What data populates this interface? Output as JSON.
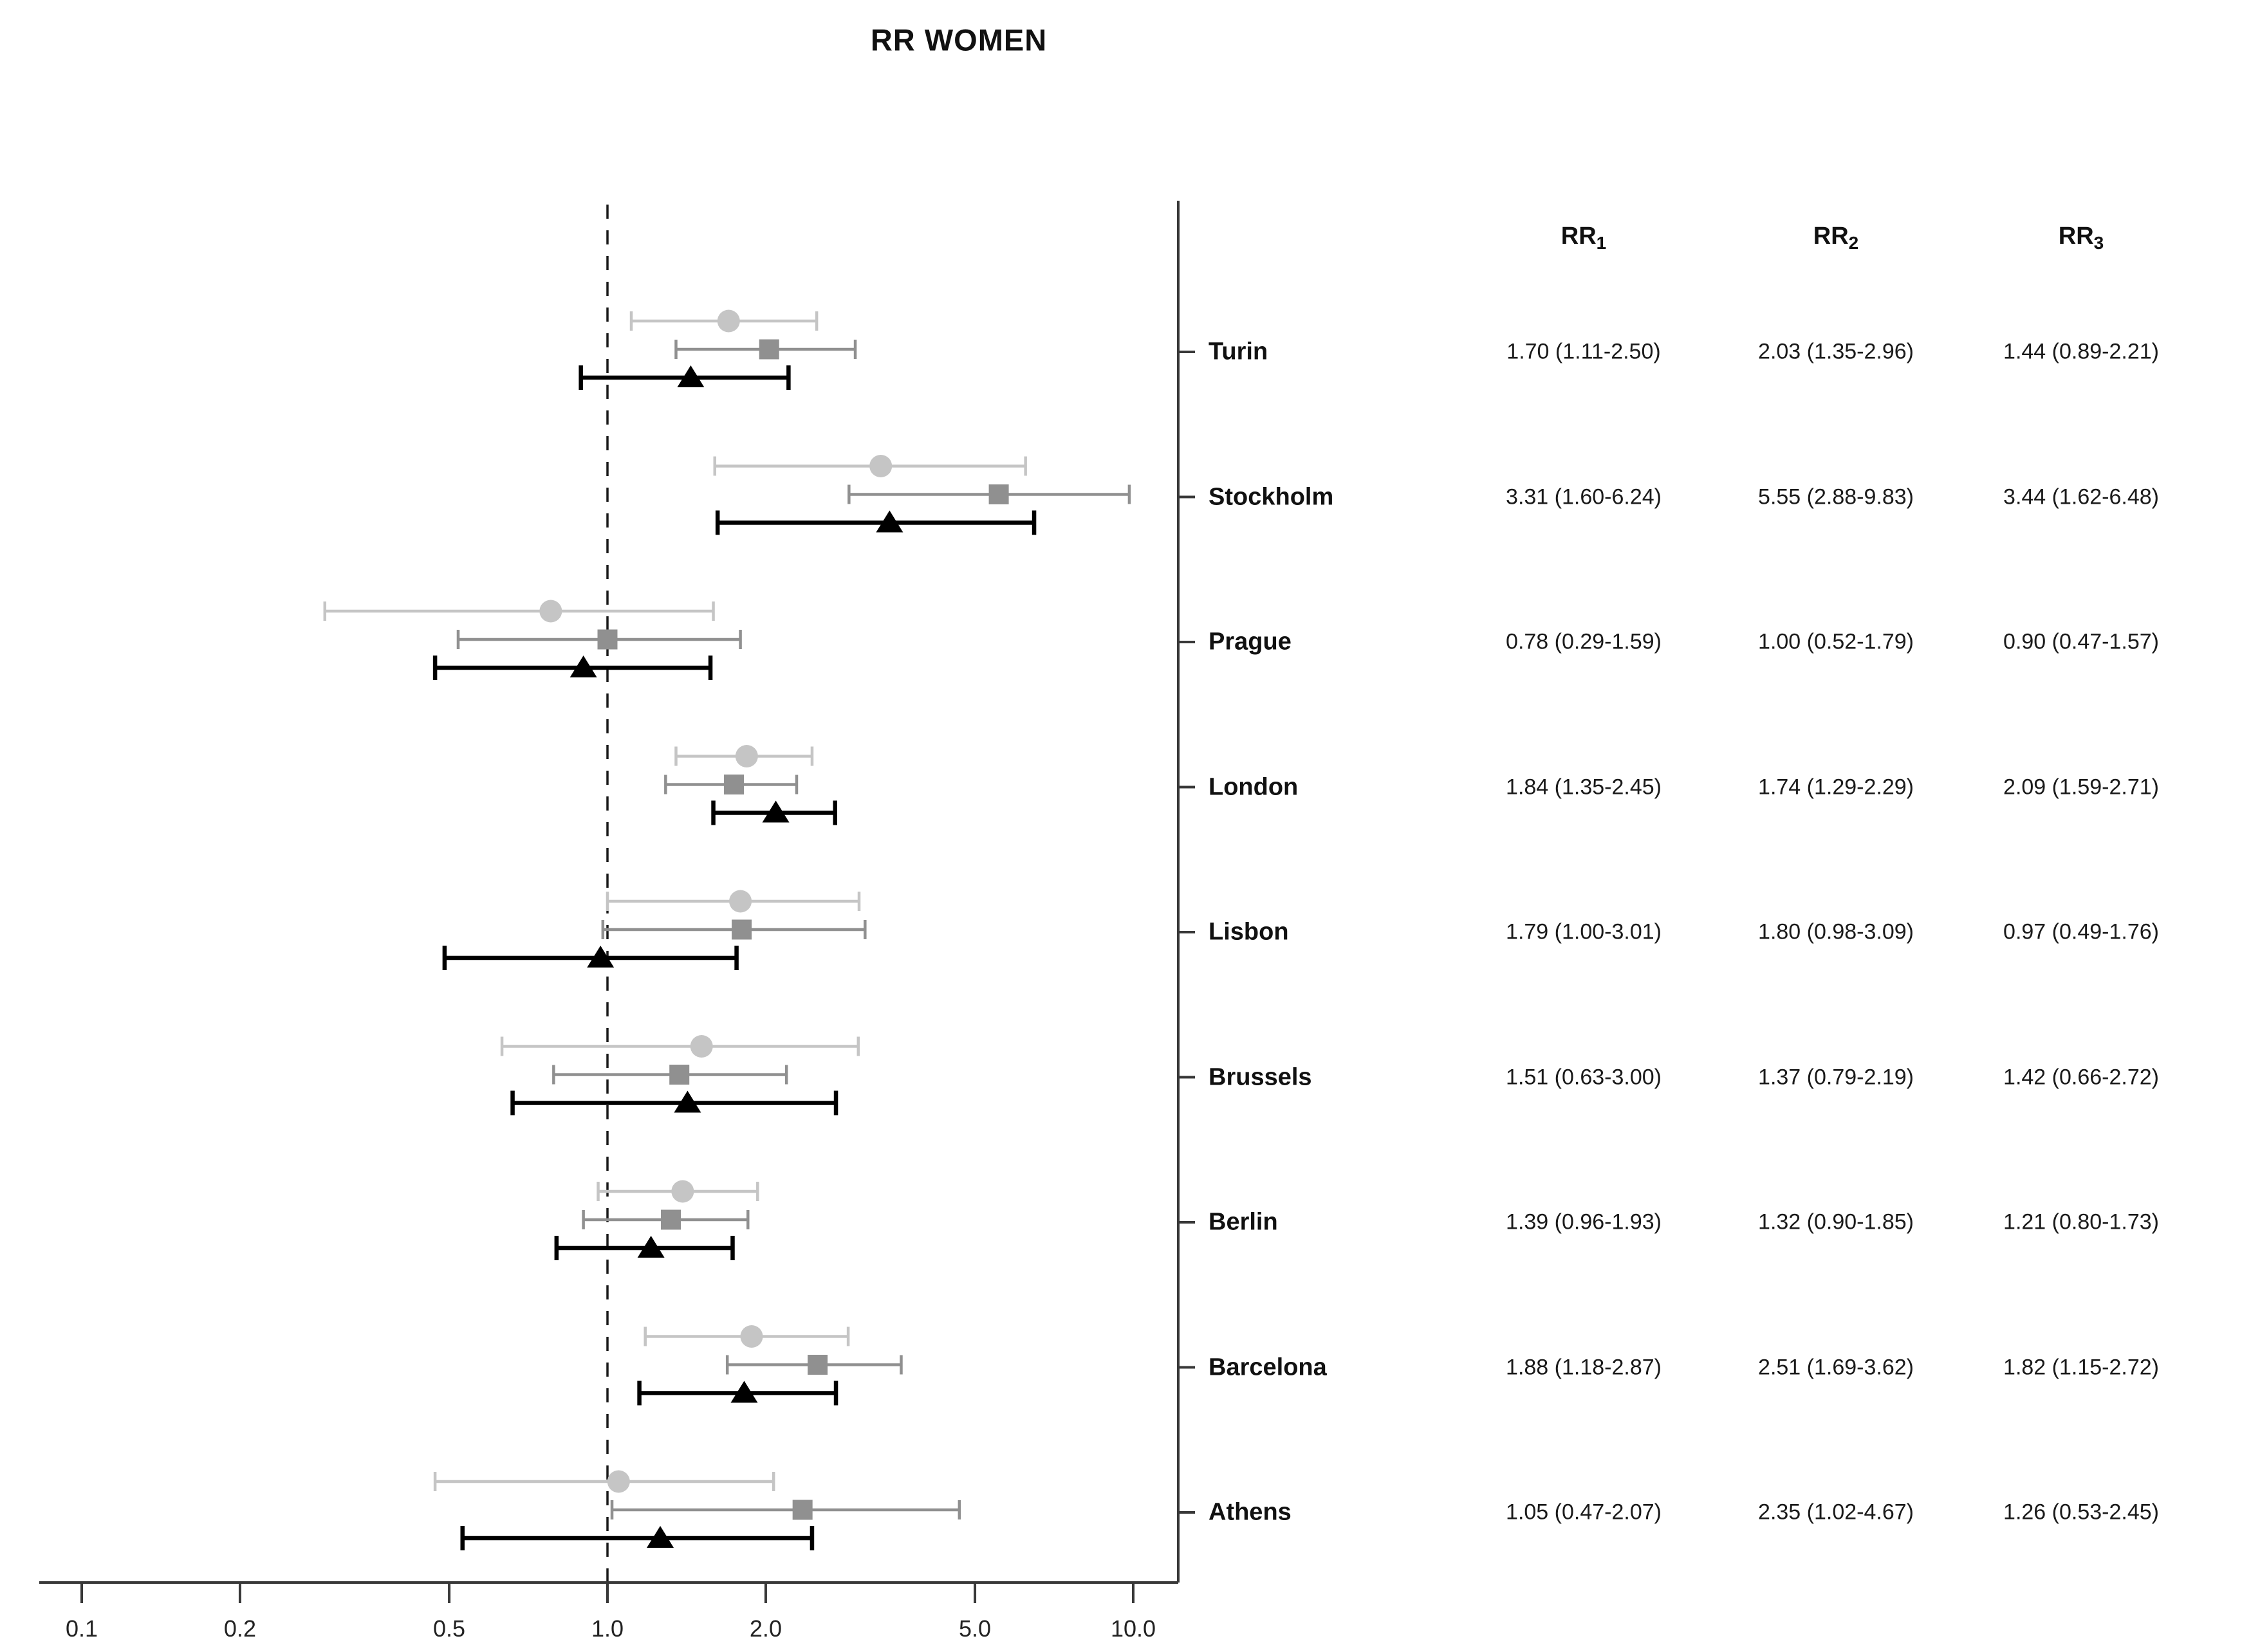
{
  "chart_data": {
    "type": "forest",
    "title": "RR WOMEN",
    "xscale": "log",
    "xticks": [
      "0.1",
      "0.2",
      "0.5",
      "1.0",
      "2.0",
      "5.0",
      "10.0"
    ],
    "xtick_values": [
      0.1,
      0.2,
      0.5,
      1.0,
      2.0,
      5.0,
      10.0
    ],
    "xlim": [
      0.083,
      12.2
    ],
    "reference_line": 1.0,
    "grid": false,
    "legend": "none",
    "frame_color": "#383838",
    "series": [
      {
        "id": "RR1",
        "header": {
          "base": "RR",
          "sub": "1"
        },
        "marker": "circle",
        "color": "#c5c5c5"
      },
      {
        "id": "RR2",
        "header": {
          "base": "RR",
          "sub": "2"
        },
        "marker": "square",
        "color": "#909090"
      },
      {
        "id": "RR3",
        "header": {
          "base": "RR",
          "sub": "3"
        },
        "marker": "triangle",
        "color": "#000000"
      }
    ],
    "rows": [
      {
        "city": "Turin",
        "estimates": [
          {
            "est": 1.7,
            "lo": 1.11,
            "hi": 2.5,
            "text": "1.70 (1.11-2.50)"
          },
          {
            "est": 2.03,
            "lo": 1.35,
            "hi": 2.96,
            "text": "2.03 (1.35-2.96)"
          },
          {
            "est": 1.44,
            "lo": 0.89,
            "hi": 2.21,
            "text": "1.44 (0.89-2.21)"
          }
        ]
      },
      {
        "city": "Stockholm",
        "estimates": [
          {
            "est": 3.31,
            "lo": 1.6,
            "hi": 6.24,
            "text": "3.31 (1.60-6.24)"
          },
          {
            "est": 5.55,
            "lo": 2.88,
            "hi": 9.83,
            "text": "5.55 (2.88-9.83)"
          },
          {
            "est": 3.44,
            "lo": 1.62,
            "hi": 6.48,
            "text": "3.44 (1.62-6.48)"
          }
        ]
      },
      {
        "city": "Prague",
        "estimates": [
          {
            "est": 0.78,
            "lo": 0.29,
            "hi": 1.59,
            "text": "0.78 (0.29-1.59)"
          },
          {
            "est": 1.0,
            "lo": 0.52,
            "hi": 1.79,
            "text": "1.00 (0.52-1.79)"
          },
          {
            "est": 0.9,
            "lo": 0.47,
            "hi": 1.57,
            "text": "0.90 (0.47-1.57)"
          }
        ]
      },
      {
        "city": "London",
        "estimates": [
          {
            "est": 1.84,
            "lo": 1.35,
            "hi": 2.45,
            "text": "1.84 (1.35-2.45)"
          },
          {
            "est": 1.74,
            "lo": 1.29,
            "hi": 2.29,
            "text": "1.74 (1.29-2.29)"
          },
          {
            "est": 2.09,
            "lo": 1.59,
            "hi": 2.71,
            "text": "2.09 (1.59-2.71)"
          }
        ]
      },
      {
        "city": "Lisbon",
        "estimates": [
          {
            "est": 1.79,
            "lo": 1.0,
            "hi": 3.01,
            "text": "1.79 (1.00-3.01)"
          },
          {
            "est": 1.8,
            "lo": 0.98,
            "hi": 3.09,
            "text": "1.80 (0.98-3.09)"
          },
          {
            "est": 0.97,
            "lo": 0.49,
            "hi": 1.76,
            "text": "0.97 (0.49-1.76)"
          }
        ]
      },
      {
        "city": "Brussels",
        "estimates": [
          {
            "est": 1.51,
            "lo": 0.63,
            "hi": 3.0,
            "text": "1.51 (0.63-3.00)"
          },
          {
            "est": 1.37,
            "lo": 0.79,
            "hi": 2.19,
            "text": "1.37 (0.79-2.19)"
          },
          {
            "est": 1.42,
            "lo": 0.66,
            "hi": 2.72,
            "text": "1.42 (0.66-2.72)"
          }
        ]
      },
      {
        "city": "Berlin",
        "estimates": [
          {
            "est": 1.39,
            "lo": 0.96,
            "hi": 1.93,
            "text": "1.39 (0.96-1.93)"
          },
          {
            "est": 1.32,
            "lo": 0.9,
            "hi": 1.85,
            "text": "1.32 (0.90-1.85)"
          },
          {
            "est": 1.21,
            "lo": 0.8,
            "hi": 1.73,
            "text": "1.21 (0.80-1.73)"
          }
        ]
      },
      {
        "city": "Barcelona",
        "estimates": [
          {
            "est": 1.88,
            "lo": 1.18,
            "hi": 2.87,
            "text": "1.88 (1.18-2.87)"
          },
          {
            "est": 2.51,
            "lo": 1.69,
            "hi": 3.62,
            "text": "2.51 (1.69-3.62)"
          },
          {
            "est": 1.82,
            "lo": 1.15,
            "hi": 2.72,
            "text": "1.82 (1.15-2.72)"
          }
        ]
      },
      {
        "city": "Athens",
        "estimates": [
          {
            "est": 1.05,
            "lo": 0.47,
            "hi": 2.07,
            "text": "1.05 (0.47-2.07)"
          },
          {
            "est": 2.35,
            "lo": 1.02,
            "hi": 4.67,
            "text": "2.35 (1.02-4.67)"
          },
          {
            "est": 1.26,
            "lo": 0.53,
            "hi": 2.45,
            "text": "1.26 (0.53-2.45)"
          }
        ]
      }
    ]
  }
}
